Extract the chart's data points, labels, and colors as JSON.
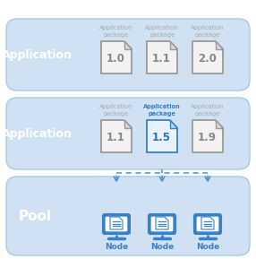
{
  "panel_bg": "#cfe1f3",
  "panel_edge": "#a8c8e8",
  "app1_label": "Application",
  "app2_label": "Application",
  "pool_label": "Pool",
  "app1_versions": [
    "1.0",
    "1.1",
    "2.0"
  ],
  "app2_versions": [
    "1.1",
    "1.5",
    "1.9"
  ],
  "app2_highlighted": 1,
  "node_label": "Node",
  "doc_border_gray": "#999999",
  "doc_border_blue": "#3a80c8",
  "doc_bg_gray": "#f2f2f2",
  "doc_bg_blue": "#e8f2fc",
  "doc_fold_gray": "#d8d8d8",
  "doc_fold_blue": "#c0d8f0",
  "doc_text_gray": "#888888",
  "doc_text_blue": "#2a70bb",
  "pkg_color_gray": "#aaaaaa",
  "pkg_color_blue": "#3a80c8",
  "arrow_color": "#4a90d0",
  "node_color": "#3a80c8",
  "label_color": "#ffffff",
  "background": "#ffffff",
  "fig_width": 2.86,
  "fig_height": 2.89,
  "dpi": 100
}
